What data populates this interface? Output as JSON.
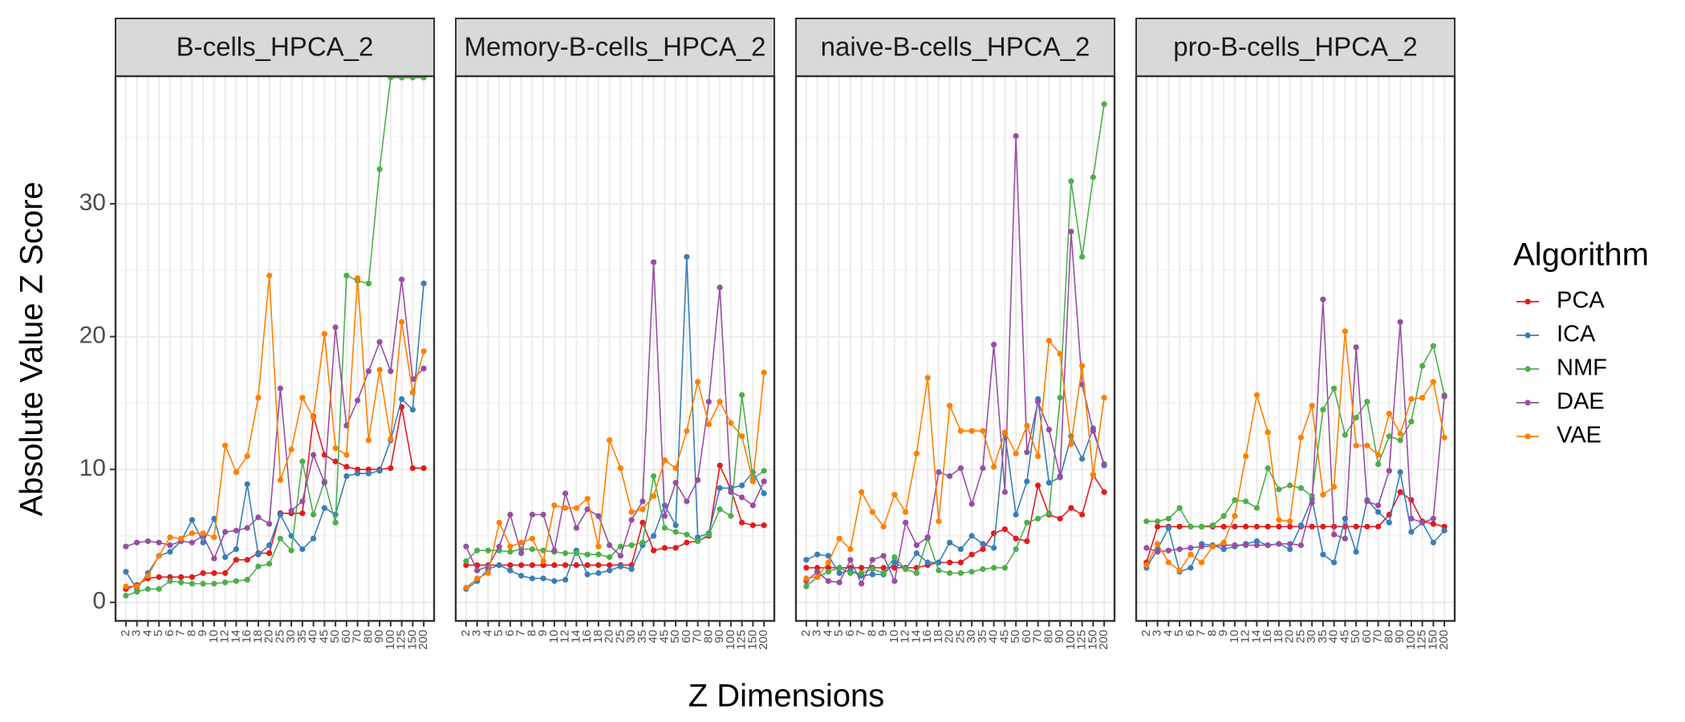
{
  "chart_data": {
    "type": "line",
    "x_label": "Z Dimensions",
    "y_label": "Absolute Value Z Score",
    "legend_title": "Algorithm",
    "categories": [
      "2",
      "3",
      "4",
      "5",
      "6",
      "7",
      "8",
      "9",
      "10",
      "12",
      "14",
      "16",
      "18",
      "20",
      "25",
      "30",
      "35",
      "40",
      "45",
      "50",
      "60",
      "70",
      "80",
      "90",
      "100",
      "125",
      "150",
      "200"
    ],
    "ylim": [
      -1.4,
      39.6
    ],
    "yticks": [
      0,
      10,
      20,
      30
    ],
    "grid": true,
    "series": [
      {
        "name": "PCA",
        "color": "#e41a1c"
      },
      {
        "name": "ICA",
        "color": "#377eb8"
      },
      {
        "name": "NMF",
        "color": "#4daf4a"
      },
      {
        "name": "DAE",
        "color": "#984ea3"
      },
      {
        "name": "VAE",
        "color": "#ff7f00"
      }
    ],
    "facets": [
      {
        "title": "B-cells_HPCA_2",
        "series": [
          {
            "values": [
              1.0,
              1.3,
              1.8,
              1.9,
              1.9,
              1.9,
              1.9,
              2.2,
              2.2,
              2.2,
              3.2,
              3.2,
              3.7,
              3.7,
              6.7,
              6.7,
              6.7,
              14.0,
              11.1,
              10.6,
              10.2,
              10.0,
              10.0,
              10.0,
              10.1,
              14.7,
              10.1,
              10.1
            ]
          },
          {
            "values": [
              2.3,
              1.0,
              2.2,
              3.5,
              3.8,
              4.6,
              6.2,
              4.5,
              6.3,
              3.4,
              4.0,
              8.9,
              3.6,
              4.3,
              6.6,
              5.0,
              4.0,
              4.8,
              7.1,
              6.6,
              9.5,
              9.7,
              9.7,
              9.9,
              12.2,
              15.3,
              14.5,
              24.0
            ]
          },
          {
            "values": [
              0.5,
              0.8,
              1.0,
              1.0,
              1.6,
              1.5,
              1.4,
              1.4,
              1.4,
              1.5,
              1.6,
              1.7,
              2.7,
              2.9,
              4.8,
              3.9,
              10.6,
              6.6,
              9.1,
              6.0,
              24.6,
              24.2,
              24.0,
              32.6,
              39.5,
              39.5,
              39.5,
              39.5
            ]
          },
          {
            "values": [
              4.2,
              4.5,
              4.6,
              4.5,
              4.3,
              4.6,
              4.5,
              5.0,
              3.3,
              5.3,
              5.4,
              5.6,
              6.4,
              5.9,
              16.1,
              6.9,
              7.6,
              11.1,
              9.0,
              20.7,
              13.3,
              15.2,
              17.4,
              19.6,
              17.4,
              24.3,
              16.8,
              17.6
            ]
          },
          {
            "values": [
              1.2,
              1.2,
              2.0,
              3.5,
              4.9,
              4.8,
              5.2,
              5.2,
              4.9,
              11.8,
              9.8,
              11.0,
              15.4,
              24.6,
              9.2,
              11.5,
              15.4,
              13.9,
              20.2,
              11.6,
              11.1,
              24.4,
              12.2,
              17.5,
              12.3,
              21.1,
              15.8,
              18.9
            ]
          }
        ]
      },
      {
        "title": "Memory-B-cells_HPCA_2",
        "series": [
          {
            "values": [
              2.8,
              2.8,
              2.8,
              2.8,
              2.8,
              2.8,
              2.8,
              2.8,
              2.8,
              2.8,
              2.8,
              2.8,
              2.8,
              2.8,
              2.8,
              2.8,
              6.0,
              3.9,
              4.1,
              4.1,
              4.5,
              4.6,
              5.0,
              10.3,
              8.5,
              6.0,
              5.8,
              5.8
            ]
          },
          {
            "values": [
              1.0,
              1.6,
              2.5,
              2.8,
              2.4,
              2.0,
              1.8,
              1.8,
              1.6,
              1.7,
              3.9,
              2.1,
              2.2,
              2.4,
              2.7,
              2.5,
              4.3,
              5.0,
              7.3,
              5.8,
              26.0,
              4.9,
              5.2,
              8.6,
              8.6,
              8.8,
              9.8,
              8.2
            ]
          },
          {
            "values": [
              3.1,
              3.9,
              3.9,
              3.9,
              3.8,
              4.0,
              4.0,
              3.9,
              3.8,
              3.7,
              3.7,
              3.6,
              3.6,
              3.4,
              4.2,
              4.3,
              4.5,
              9.5,
              5.6,
              5.3,
              5.1,
              4.6,
              5.1,
              7.0,
              6.5,
              15.6,
              9.3,
              9.9
            ]
          },
          {
            "values": [
              4.2,
              2.4,
              2.7,
              4.2,
              6.6,
              3.7,
              6.6,
              6.6,
              3.9,
              8.2,
              5.6,
              7.0,
              6.5,
              4.3,
              3.5,
              6.2,
              7.6,
              25.6,
              6.5,
              9.0,
              7.6,
              9.2,
              15.1,
              23.7,
              8.3,
              7.9,
              7.3,
              9.1
            ]
          },
          {
            "values": [
              1.1,
              1.8,
              2.2,
              6.0,
              4.2,
              4.5,
              4.8,
              3.1,
              7.3,
              7.1,
              7.1,
              7.8,
              4.2,
              12.2,
              10.1,
              6.8,
              7.0,
              8.0,
              10.7,
              10.1,
              12.9,
              16.6,
              13.4,
              15.1,
              13.5,
              12.5,
              9.1,
              17.3
            ]
          }
        ]
      },
      {
        "title": "naive-B-cells_HPCA_2",
        "series": [
          {
            "values": [
              2.6,
              2.6,
              2.6,
              2.6,
              2.6,
              2.6,
              2.6,
              2.6,
              2.6,
              2.6,
              2.6,
              2.8,
              3.0,
              3.0,
              3.0,
              3.6,
              4.0,
              5.2,
              5.5,
              4.8,
              4.6,
              8.8,
              6.6,
              6.3,
              7.1,
              6.6,
              9.6,
              8.3
            ]
          },
          {
            "values": [
              3.2,
              3.6,
              3.5,
              2.2,
              2.4,
              2.0,
              2.1,
              2.1,
              3.0,
              2.5,
              3.7,
              3.0,
              3.0,
              4.5,
              4.0,
              5.0,
              4.4,
              4.1,
              12.7,
              6.6,
              9.1,
              15.3,
              9.0,
              9.4,
              12.5,
              10.8,
              13.1,
              10.3
            ]
          },
          {
            "values": [
              1.2,
              1.9,
              2.3,
              2.6,
              2.2,
              2.2,
              2.5,
              2.2,
              3.4,
              2.5,
              2.2,
              4.8,
              2.4,
              2.2,
              2.2,
              2.3,
              2.5,
              2.6,
              2.6,
              4.0,
              6.0,
              6.3,
              6.7,
              15.4,
              31.7,
              26.0,
              32.0,
              37.5
            ]
          },
          {
            "values": [
              1.6,
              2.3,
              1.6,
              1.5,
              3.2,
              1.4,
              3.2,
              3.5,
              1.6,
              6.0,
              4.3,
              4.9,
              9.8,
              9.5,
              10.1,
              7.4,
              10.1,
              19.4,
              8.3,
              35.1,
              11.3,
              15.1,
              13.0,
              9.5,
              27.9,
              16.4,
              12.9,
              10.4
            ]
          },
          {
            "values": [
              1.8,
              1.9,
              3.0,
              4.8,
              4.0,
              8.3,
              6.8,
              5.7,
              8.1,
              6.8,
              11.2,
              16.9,
              6.1,
              14.8,
              12.9,
              12.9,
              12.9,
              10.2,
              12.8,
              11.2,
              13.3,
              11.0,
              19.7,
              18.7,
              11.9,
              17.8,
              9.6,
              15.4
            ]
          }
        ]
      },
      {
        "title": "pro-B-cells_HPCA_2",
        "series": [
          {
            "values": [
              3.0,
              5.7,
              5.7,
              5.7,
              5.7,
              5.7,
              5.7,
              5.7,
              5.7,
              5.7,
              5.7,
              5.7,
              5.7,
              5.7,
              5.7,
              5.7,
              5.7,
              5.7,
              5.7,
              5.7,
              5.7,
              5.7,
              6.6,
              8.3,
              7.7,
              6.1,
              5.9,
              5.7
            ]
          },
          {
            "values": [
              2.6,
              4.0,
              5.6,
              2.3,
              2.6,
              4.4,
              4.3,
              4.0,
              4.2,
              4.4,
              4.6,
              4.3,
              4.4,
              4.0,
              5.8,
              7.8,
              3.6,
              3.0,
              6.3,
              3.8,
              7.7,
              6.8,
              6.0,
              9.8,
              5.3,
              6.0,
              4.5,
              5.4
            ]
          },
          {
            "values": [
              6.1,
              6.1,
              6.3,
              7.1,
              5.7,
              5.7,
              5.8,
              6.5,
              7.7,
              7.6,
              7.1,
              10.1,
              8.5,
              8.8,
              8.6,
              8.0,
              14.5,
              16.1,
              12.6,
              13.9,
              15.1,
              10.4,
              12.5,
              12.2,
              13.6,
              17.8,
              19.3,
              15.6
            ]
          },
          {
            "values": [
              4.1,
              3.8,
              3.9,
              4.0,
              4.1,
              4.2,
              4.2,
              4.3,
              4.3,
              4.3,
              4.3,
              4.3,
              4.4,
              4.4,
              4.3,
              7.5,
              22.8,
              5.1,
              4.8,
              19.2,
              7.6,
              7.3,
              9.9,
              21.1,
              6.3,
              6.0,
              6.3,
              15.5
            ]
          },
          {
            "values": [
              2.8,
              4.4,
              3.0,
              2.4,
              3.6,
              3.0,
              4.2,
              4.5,
              6.5,
              11.0,
              15.6,
              12.8,
              6.2,
              6.1,
              12.4,
              14.8,
              8.1,
              8.7,
              20.4,
              11.8,
              11.8,
              11.1,
              14.2,
              12.7,
              15.3,
              15.4,
              16.6,
              12.4
            ]
          }
        ]
      }
    ]
  }
}
